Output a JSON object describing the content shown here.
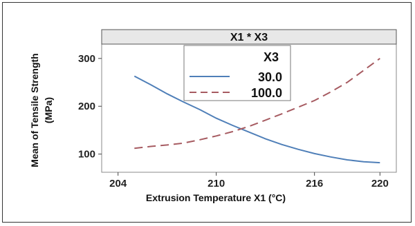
{
  "chart_data": {
    "type": "line",
    "panel_title": "X1 * X3",
    "xlabel": "Extrusion Temperature X1 (°C)",
    "ylabel_line1": "Mean of Tensile Strength",
    "ylabel_line2": "(MPa)",
    "xlim": [
      203.0,
      221.0
    ],
    "ylim": [
      62,
      330
    ],
    "x_ticks": [
      204,
      210,
      216,
      220
    ],
    "x_tick_labels": [
      "204",
      "210",
      "216",
      "220"
    ],
    "y_ticks": [
      100,
      200,
      300
    ],
    "y_tick_labels": [
      "100",
      "200",
      "300"
    ],
    "legend": {
      "title": "X3",
      "position": "top-center"
    },
    "series": [
      {
        "name": "30.0",
        "color": "#4f7fb8",
        "style": "solid",
        "x": [
          205,
          206,
          207,
          208,
          209,
          210,
          211,
          212,
          213,
          214,
          215,
          216,
          217,
          218,
          219,
          220
        ],
        "values": [
          263,
          245,
          226,
          209,
          193,
          175,
          160,
          146,
          132,
          120,
          110,
          101,
          94,
          88,
          84,
          82
        ]
      },
      {
        "name": "100.0",
        "color": "#a65a60",
        "style": "dashed",
        "x": [
          205,
          206,
          207,
          208,
          209,
          210,
          211,
          212,
          213,
          214,
          215,
          216,
          217,
          218,
          219,
          220
        ],
        "values": [
          112,
          116,
          119,
          123,
          130,
          138,
          147,
          158,
          171,
          184,
          198,
          212,
          230,
          250,
          275,
          300
        ]
      }
    ]
  }
}
